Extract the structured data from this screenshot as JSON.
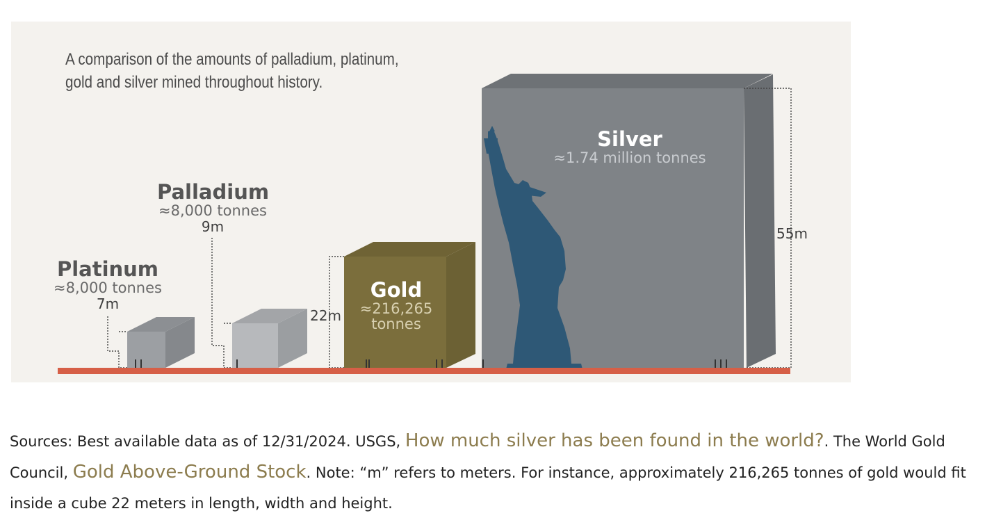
{
  "figure": {
    "caption_line1": "A comparison of the amounts of palladium, platinum,",
    "caption_line2": "gold and silver mined throughout history.",
    "platinum": {
      "name": "Platinum",
      "amount": "≈8,000 tonnes",
      "size": "7m"
    },
    "palladium": {
      "name": "Palladium",
      "amount": "≈8,000 tonnes",
      "size": "9m"
    },
    "gold": {
      "name": "Gold",
      "amount_line1": "≈216,265",
      "amount_line2": "tonnes",
      "size": "22m"
    },
    "silver": {
      "name": "Silver",
      "amount": "≈1.74 million tonnes",
      "size": "55m"
    },
    "colors": {
      "ground": "#d65f47",
      "gold": "#7b6e3c",
      "silver": "#7f8387",
      "platinum": "#9c9fa3",
      "palladium": "#b7b9bc",
      "statue": "#2e5876"
    },
    "statue_icon": "statue-of-liberty-icon"
  },
  "sources": {
    "prefix": "Sources: Best available data as of 12/31/2024. USGS, ",
    "link1": "How much silver has been found in the world?",
    "mid": ". The World Gold Council, ",
    "link2": "Gold Above-Ground Stock",
    "suffix": ". Note: “m” refers to meters. For instance, approximately 216,265 tonnes of gold would fit inside a cube 22 meters in length, width and height."
  }
}
